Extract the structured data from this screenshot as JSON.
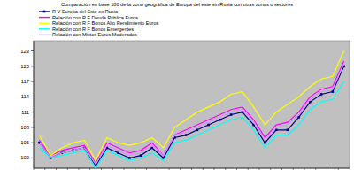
{
  "chart_data": {
    "type": "line",
    "title": "Comparación en base 100 de la zona geográfica de Europa del este sin Rusia con otras zonas o sectores",
    "categories": [
      null,
      null,
      null,
      null,
      null,
      null,
      null,
      null,
      null,
      null,
      null,
      null,
      null,
      null,
      null,
      null,
      null,
      null,
      null,
      null,
      null,
      null,
      null,
      null,
      null,
      null,
      null,
      null
    ],
    "series": [
      {
        "name": "R V Europa del Este ex Rusia",
        "color": "#000080",
        "marker": "square",
        "values": [
          105,
          102,
          103,
          103.5,
          104,
          100.5,
          104,
          103,
          102,
          102.5,
          104,
          102,
          106,
          106.5,
          107.5,
          108.5,
          109.5,
          110.5,
          111,
          108.5,
          105,
          107.5,
          107.5,
          110,
          113,
          114.5,
          115,
          120
        ]
      },
      {
        "name": "Relación con R F Deuda Pública Euros",
        "color": "#ff00ff",
        "values": [
          105.5,
          102.5,
          103.5,
          104,
          104.5,
          101,
          105,
          104,
          103,
          103.5,
          105,
          102.5,
          106.5,
          107.5,
          108.5,
          109.5,
          110.5,
          111.5,
          112,
          109.5,
          106,
          108.5,
          109,
          111,
          114,
          115.5,
          116,
          121
        ]
      },
      {
        "name": "Relación con R F Bonos Alto Rendimiento Euros",
        "color": "#ffff00",
        "values": [
          106.5,
          102.5,
          104,
          105,
          105.5,
          101.5,
          106,
          105,
          104.5,
          105,
          106,
          104,
          108,
          109.5,
          111,
          112,
          113,
          114.5,
          115,
          112,
          108.5,
          111,
          112.5,
          114,
          116,
          117.5,
          118,
          123
        ]
      },
      {
        "name": "Relación con R F Bonos Emergentes",
        "color": "#00ffff",
        "values": [
          104,
          102,
          102.5,
          103,
          103.5,
          100,
          103.5,
          102.5,
          101.5,
          102,
          103,
          101.5,
          105,
          105.5,
          106.5,
          107.5,
          108.5,
          109.5,
          110,
          107.5,
          104,
          106.5,
          106.5,
          108.5,
          111.5,
          113,
          113.5,
          117
        ]
      },
      {
        "name": "Relación con Mixtos Euros Moderados",
        "color": "#cc99ff",
        "values": [
          105,
          102,
          103,
          103.5,
          104,
          100.8,
          104.5,
          103.5,
          102.5,
          103,
          104.5,
          102.5,
          106.5,
          107,
          108,
          109,
          110,
          111,
          111.5,
          109,
          105.5,
          108,
          108.5,
          110.5,
          113.5,
          115,
          115.5,
          120.5
        ]
      }
    ],
    "ylim": [
      100,
      125
    ],
    "yticks": [
      102,
      105,
      108,
      111,
      114,
      117,
      120,
      123
    ],
    "grid": false,
    "legend": "top-left",
    "tick_labels": "y"
  }
}
